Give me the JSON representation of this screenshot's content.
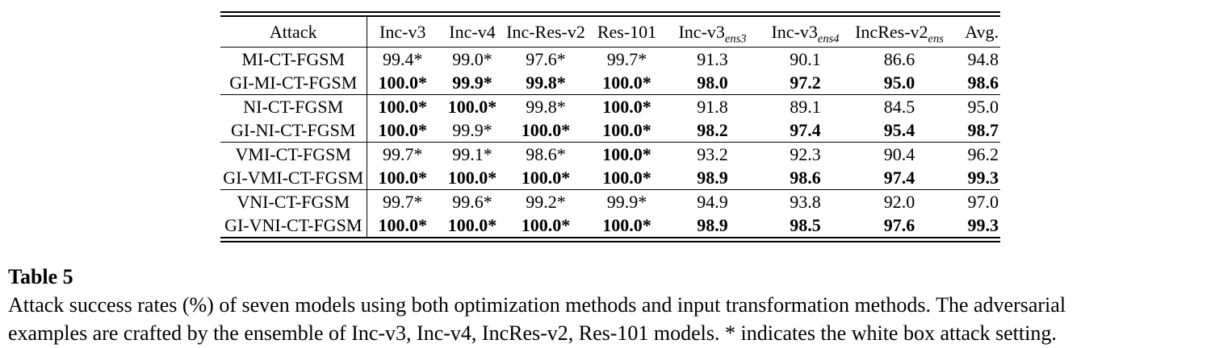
{
  "page": {
    "background": "#ffffff",
    "text_color": "#000000",
    "rule_color": "#000000"
  },
  "table": {
    "columns": [
      {
        "key": "attack",
        "label": "Attack",
        "sub": ""
      },
      {
        "key": "inc-v3",
        "label": "Inc-v3",
        "sub": ""
      },
      {
        "key": "inc-v4",
        "label": "Inc-v4",
        "sub": ""
      },
      {
        "key": "inc-res-v2",
        "label": "Inc-Res-v2",
        "sub": ""
      },
      {
        "key": "res-101",
        "label": "Res-101",
        "sub": ""
      },
      {
        "key": "inc-v3-ens3",
        "label": "Inc-v3",
        "sub": "ens3"
      },
      {
        "key": "inc-v3-ens4",
        "label": "Inc-v3",
        "sub": "ens4"
      },
      {
        "key": "incres-v2-ens",
        "label": "IncRes-v2",
        "sub": "ens"
      },
      {
        "key": "avg",
        "label": "Avg.",
        "sub": ""
      }
    ],
    "groups": [
      {
        "rows": [
          {
            "attack": "MI-CT-FGSM",
            "values": [
              "99.4*",
              "99.0*",
              "97.6*",
              "99.7*",
              "91.3",
              "90.1",
              "86.6",
              "94.8"
            ],
            "bold": [
              false,
              false,
              false,
              false,
              false,
              false,
              false,
              false
            ]
          },
          {
            "attack": "GI-MI-CT-FGSM",
            "values": [
              "100.0*",
              "99.9*",
              "99.8*",
              "100.0*",
              "98.0",
              "97.2",
              "95.0",
              "98.6"
            ],
            "bold": [
              true,
              true,
              true,
              true,
              true,
              true,
              true,
              true
            ]
          }
        ]
      },
      {
        "rows": [
          {
            "attack": "NI-CT-FGSM",
            "values": [
              "100.0*",
              "100.0*",
              "99.8*",
              "100.0*",
              "91.8",
              "89.1",
              "84.5",
              "95.0"
            ],
            "bold": [
              true,
              true,
              false,
              true,
              false,
              false,
              false,
              false
            ]
          },
          {
            "attack": "GI-NI-CT-FGSM",
            "values": [
              "100.0*",
              "99.9*",
              "100.0*",
              "100.0*",
              "98.2",
              "97.4",
              "95.4",
              "98.7"
            ],
            "bold": [
              true,
              false,
              true,
              true,
              true,
              true,
              true,
              true
            ]
          }
        ]
      },
      {
        "rows": [
          {
            "attack": "VMI-CT-FGSM",
            "values": [
              "99.7*",
              "99.1*",
              "98.6*",
              "100.0*",
              "93.2",
              "92.3",
              "90.4",
              "96.2"
            ],
            "bold": [
              false,
              false,
              false,
              true,
              false,
              false,
              false,
              false
            ]
          },
          {
            "attack": "GI-VMI-CT-FGSM",
            "values": [
              "100.0*",
              "100.0*",
              "100.0*",
              "100.0*",
              "98.9",
              "98.6",
              "97.4",
              "99.3"
            ],
            "bold": [
              true,
              true,
              true,
              true,
              true,
              true,
              true,
              true
            ]
          }
        ]
      },
      {
        "rows": [
          {
            "attack": "VNI-CT-FGSM",
            "values": [
              "99.7*",
              "99.6*",
              "99.2*",
              "99.9*",
              "94.9",
              "93.8",
              "92.0",
              "97.0"
            ],
            "bold": [
              false,
              false,
              false,
              false,
              false,
              false,
              false,
              false
            ]
          },
          {
            "attack": "GI-VNI-CT-FGSM",
            "values": [
              "100.0*",
              "100.0*",
              "100.0*",
              "100.0*",
              "98.9",
              "98.5",
              "97.6",
              "99.3"
            ],
            "bold": [
              true,
              true,
              true,
              true,
              true,
              true,
              true,
              true
            ]
          }
        ]
      }
    ]
  },
  "caption": {
    "label": "Table 5",
    "lines": [
      "Attack success rates (%) of seven models using both optimization methods and input transformation methods. The adversarial",
      "examples are crafted by the ensemble of Inc-v3, Inc-v4, IncRes-v2, Res-101 models. * indicates the white box attack setting."
    ]
  }
}
